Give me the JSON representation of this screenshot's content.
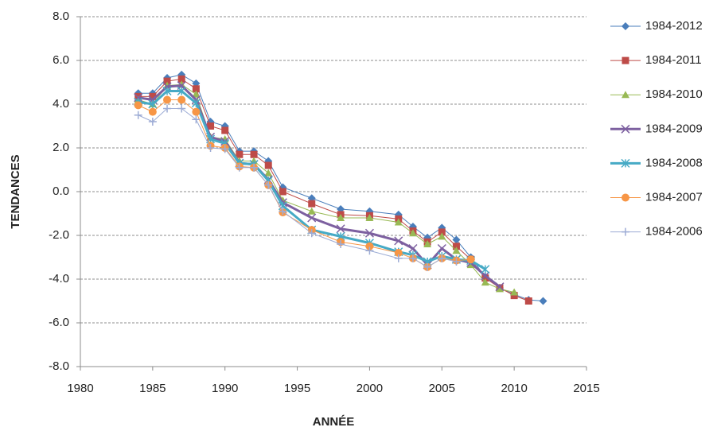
{
  "chart_data": {
    "type": "line",
    "x_label": "ANNÉE",
    "y_label": "TENDANCES",
    "x": [
      1984,
      1985,
      1986,
      1987,
      1988,
      1989,
      1990,
      1991,
      1992,
      1993,
      1994,
      1996,
      1998,
      2000,
      2002,
      2003,
      2004,
      2005,
      2006,
      2007,
      2008,
      2009,
      2010,
      2011,
      2012
    ],
    "xlim": [
      1980,
      2015
    ],
    "xticks": [
      1980,
      1985,
      1990,
      1995,
      2000,
      2005,
      2010,
      2015
    ],
    "ylim": [
      -8,
      8
    ],
    "yticks": [
      {
        "value": -8,
        "label": "-8.0"
      },
      {
        "value": -6,
        "label": "-6.0"
      },
      {
        "value": -4,
        "label": "-4.0"
      },
      {
        "value": -2,
        "label": "-2.0"
      },
      {
        "value": 0,
        "label": "0.0"
      },
      {
        "value": 2,
        "label": "2.0"
      },
      {
        "value": 4,
        "label": "4.0"
      },
      {
        "value": 6,
        "label": "6.0"
      },
      {
        "value": 8,
        "label": "8.0"
      }
    ],
    "grid": true,
    "legend": "right",
    "series": [
      {
        "name": "1984-2012",
        "color": "#4a7ebb",
        "marker": "diamond",
        "line_width": 1,
        "values": [
          4.5,
          4.5,
          5.2,
          5.35,
          4.95,
          3.2,
          3.0,
          1.85,
          1.85,
          1.4,
          0.2,
          -0.3,
          -0.8,
          -0.9,
          -1.05,
          -1.6,
          -2.1,
          -1.65,
          -2.2,
          -3.0,
          -3.9,
          -4.4,
          -4.7,
          -4.95,
          -5.0
        ]
      },
      {
        "name": "1984-2011",
        "color": "#be4b48",
        "marker": "square",
        "line_width": 1,
        "values": [
          4.35,
          4.35,
          5.05,
          5.15,
          4.7,
          3.0,
          2.8,
          1.7,
          1.7,
          1.2,
          0.0,
          -0.55,
          -1.05,
          -1.1,
          -1.25,
          -1.8,
          -2.3,
          -1.85,
          -2.5,
          -3.1,
          -3.95,
          -4.4,
          -4.75,
          -5.0,
          null
        ]
      },
      {
        "name": "1984-2010",
        "color": "#98b954",
        "marker": "triangle",
        "line_width": 1,
        "values": [
          4.2,
          4.0,
          4.85,
          4.9,
          4.45,
          2.5,
          2.4,
          1.4,
          1.4,
          0.85,
          -0.4,
          -0.9,
          -1.2,
          -1.2,
          -1.4,
          -1.9,
          -2.4,
          -2.05,
          -2.7,
          -3.35,
          -4.15,
          -4.45,
          -4.6,
          null,
          null
        ]
      },
      {
        "name": "1984-2009",
        "color": "#7d60a0",
        "marker": "x",
        "line_width": 3,
        "values": [
          4.3,
          4.2,
          4.8,
          4.85,
          4.2,
          2.5,
          2.3,
          1.3,
          1.25,
          0.55,
          -0.5,
          -1.2,
          -1.7,
          -1.9,
          -2.25,
          -2.6,
          -3.35,
          -2.6,
          -3.1,
          -3.25,
          -3.85,
          -4.35,
          null,
          null,
          null
        ]
      },
      {
        "name": "1984-2008",
        "color": "#46aac5",
        "marker": "star",
        "line_width": 3,
        "values": [
          4.1,
          4.0,
          4.6,
          4.6,
          4.05,
          2.4,
          2.2,
          1.3,
          1.25,
          0.5,
          -0.65,
          -1.75,
          -2.05,
          -2.35,
          -2.75,
          -2.9,
          -3.2,
          -2.95,
          -3.1,
          -3.15,
          -3.55,
          null,
          null,
          null,
          null
        ]
      },
      {
        "name": "1984-2007",
        "color": "#f79646",
        "marker": "circle",
        "line_width": 1,
        "values": [
          3.95,
          3.65,
          4.2,
          4.2,
          3.65,
          2.1,
          2.0,
          1.15,
          1.1,
          0.3,
          -0.95,
          -1.75,
          -2.3,
          -2.5,
          -2.8,
          -3.05,
          -3.45,
          -3.05,
          -3.15,
          -3.1,
          null,
          null,
          null,
          null,
          null
        ]
      },
      {
        "name": "1984-2006",
        "color": "#9dacd5",
        "marker": "plus",
        "line_width": 1,
        "values": [
          3.5,
          3.2,
          3.8,
          3.8,
          3.3,
          2.0,
          1.95,
          1.1,
          1.1,
          0.3,
          -0.9,
          -1.9,
          -2.4,
          -2.7,
          -3.05,
          -3.05,
          -3.45,
          -3.05,
          -3.2,
          null,
          null,
          null,
          null,
          null,
          null
        ]
      }
    ]
  }
}
